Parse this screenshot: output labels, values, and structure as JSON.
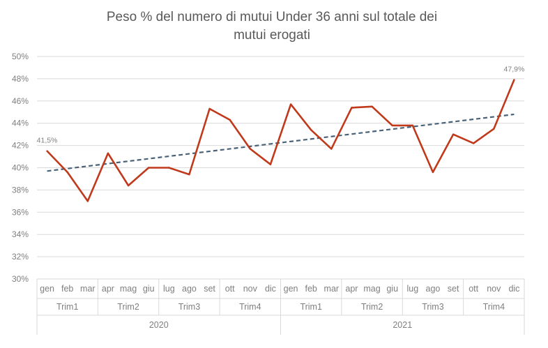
{
  "chart_data": {
    "type": "line",
    "title_lines": [
      "Peso % del numero di mutui Under 36 anni sul totale dei",
      "mutui erogati"
    ],
    "y_ticks": [
      "30%",
      "32%",
      "34%",
      "36%",
      "38%",
      "40%",
      "42%",
      "44%",
      "46%",
      "48%",
      "50%"
    ],
    "ylim": [
      30,
      50
    ],
    "grid": true,
    "categories": [
      "gen",
      "feb",
      "mar",
      "apr",
      "mag",
      "giu",
      "lug",
      "ago",
      "set",
      "ott",
      "nov",
      "dic",
      "gen",
      "feb",
      "mar",
      "apr",
      "mag",
      "giu",
      "lug",
      "ago",
      "set",
      "ott",
      "nov",
      "dic"
    ],
    "quarters": [
      {
        "label": "Trim1",
        "year": "2020"
      },
      {
        "label": "Trim2",
        "year": "2020"
      },
      {
        "label": "Trim3",
        "year": "2020"
      },
      {
        "label": "Trim4",
        "year": "2020"
      },
      {
        "label": "Trim1",
        "year": "2021"
      },
      {
        "label": "Trim2",
        "year": "2021"
      },
      {
        "label": "Trim3",
        "year": "2021"
      },
      {
        "label": "Trim4",
        "year": "2021"
      }
    ],
    "years": [
      "2020",
      "2021"
    ],
    "series": [
      {
        "values": [
          41.5,
          39.6,
          37.0,
          41.3,
          38.4,
          40.0,
          40.0,
          39.4,
          45.3,
          44.3,
          41.7,
          40.3,
          45.7,
          43.4,
          41.7,
          45.4,
          45.5,
          43.8,
          43.8,
          39.6,
          43.0,
          42.2,
          43.5,
          47.9
        ],
        "color": "#c0391b"
      }
    ],
    "trendline": {
      "type": "linear",
      "start": 39.7,
      "end": 44.8,
      "color": "#4a6278",
      "style": "dashed"
    },
    "data_labels": [
      {
        "index": 0,
        "text": "41,5%"
      },
      {
        "index": 23,
        "text": "47,9%"
      }
    ]
  }
}
